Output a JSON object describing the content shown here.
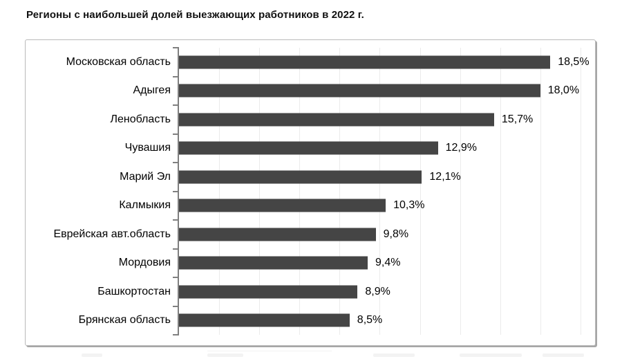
{
  "title": "Регионы с наибольшей долей выезжающих работников в 2022 г.",
  "chart_data": {
    "type": "bar",
    "orientation": "horizontal",
    "title": "Регионы с наибольшей долей выезжающих работников в 2022 г.",
    "categories": [
      "Московская область",
      "Адыгея",
      "Ленобласть",
      "Чувашия",
      "Марий Эл",
      "Калмыкия",
      "Еврейская авт.область",
      "Мордовия",
      "Башкортостан",
      "Брянская область"
    ],
    "values": [
      18.5,
      18.0,
      15.7,
      12.9,
      12.1,
      10.3,
      9.8,
      9.4,
      8.9,
      8.5
    ],
    "value_labels": [
      "18,5%",
      "18,0%",
      "15,7%",
      "12,9%",
      "12,1%",
      "10,3%",
      "9,8%",
      "9,4%",
      "8,9%",
      "8,5%"
    ],
    "xlabel": "",
    "ylabel": "",
    "xlim": [
      0,
      20.8
    ],
    "gridline_step": 2,
    "grid": true,
    "legend": "none",
    "colors": {
      "bar": "#454545",
      "gridline": "#ebebeb",
      "axis": "#7f7f7f",
      "frame_border": "#b9b9b9",
      "frame_shadow": "#a6a6a6",
      "text": "#000000"
    }
  }
}
